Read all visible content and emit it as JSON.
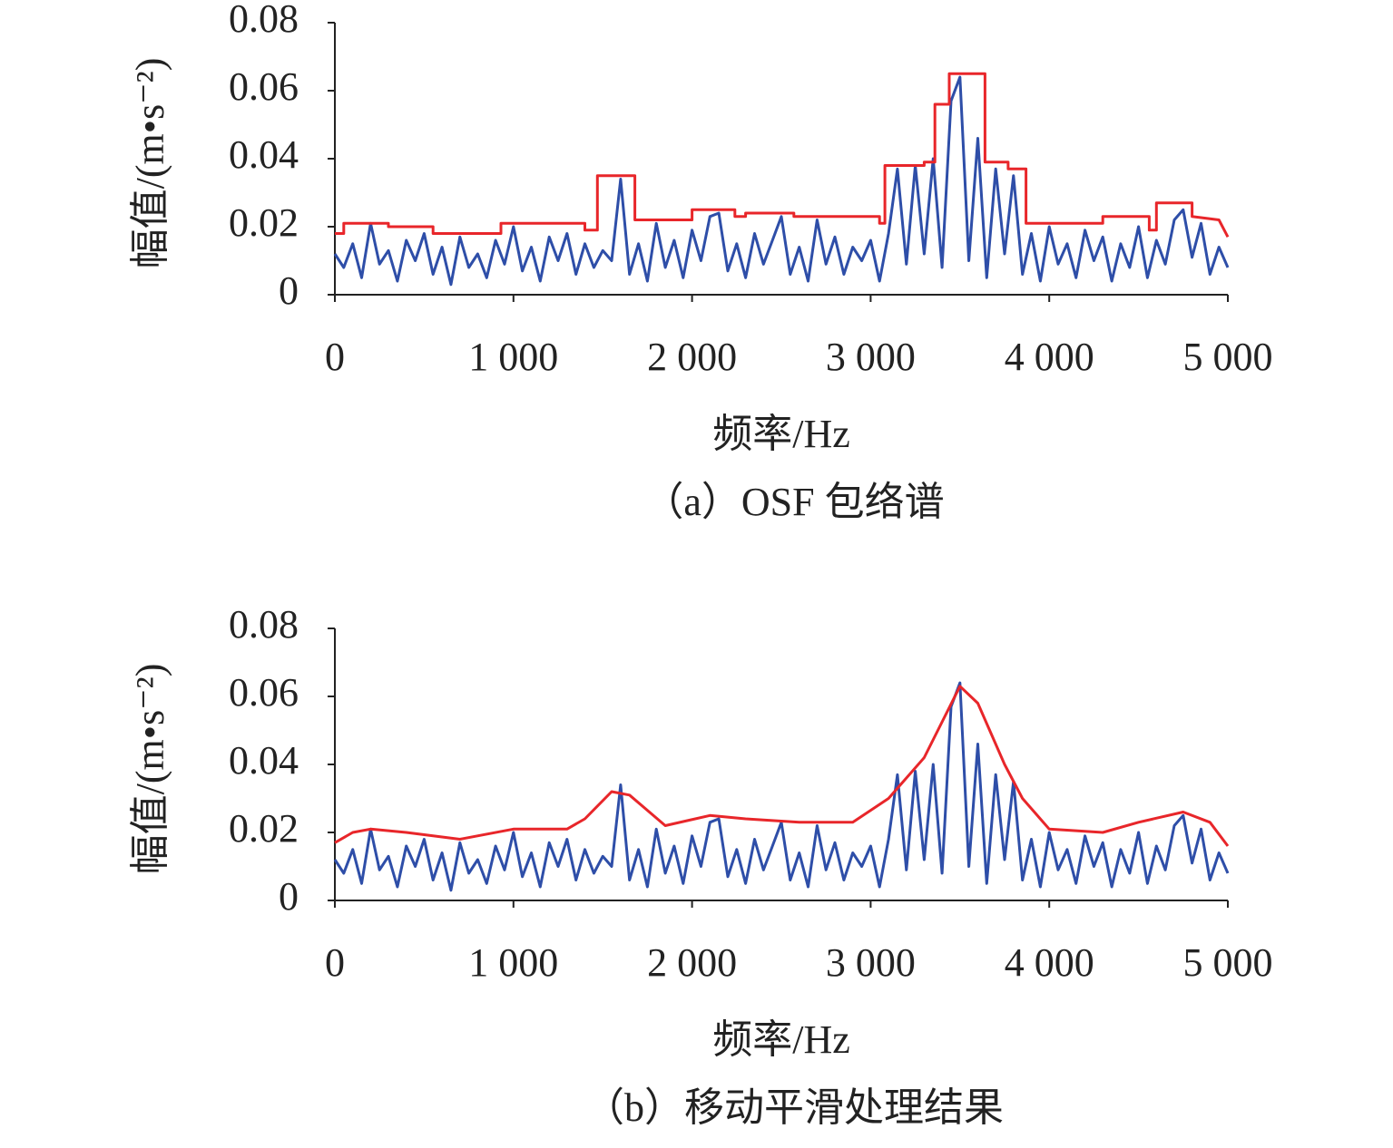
{
  "chart_data": [
    {
      "type": "line",
      "caption": "（a）OSF 包络谱",
      "x_label": "频率/Hz",
      "y_label": "幅值/(m•s⁻²)",
      "xlim": [
        0,
        5000
      ],
      "ylim": [
        0,
        0.08
      ],
      "xticks": [
        0,
        {
          "value": 1000,
          "label": "1 000"
        },
        {
          "value": 2000,
          "label": "2 000"
        },
        {
          "value": 3000,
          "label": "3 000"
        },
        {
          "value": 4000,
          "label": "4 000"
        },
        {
          "value": 5000,
          "label": "5 000"
        }
      ],
      "yticks": [
        0,
        0.02,
        0.04,
        0.06,
        0.08
      ],
      "series": [
        {
          "color": "#2e4ea8",
          "x": [
            0,
            50,
            100,
            150,
            200,
            250,
            300,
            350,
            400,
            450,
            500,
            550,
            600,
            650,
            700,
            750,
            800,
            850,
            900,
            950,
            1000,
            1050,
            1100,
            1150,
            1200,
            1250,
            1300,
            1350,
            1400,
            1450,
            1500,
            1550,
            1600,
            1650,
            1700,
            1750,
            1800,
            1850,
            1900,
            1950,
            2000,
            2050,
            2100,
            2150,
            2200,
            2250,
            2300,
            2350,
            2400,
            2450,
            2500,
            2550,
            2600,
            2650,
            2700,
            2750,
            2800,
            2850,
            2900,
            2950,
            3000,
            3050,
            3100,
            3150,
            3200,
            3250,
            3300,
            3350,
            3400,
            3450,
            3500,
            3550,
            3600,
            3650,
            3700,
            3750,
            3800,
            3850,
            3900,
            3950,
            4000,
            4050,
            4100,
            4150,
            4200,
            4250,
            4300,
            4350,
            4400,
            4450,
            4500,
            4550,
            4600,
            4650,
            4700,
            4750,
            4800,
            4850,
            4900,
            4950,
            5000
          ],
          "values": [
            0.012,
            0.008,
            0.015,
            0.005,
            0.021,
            0.009,
            0.013,
            0.004,
            0.016,
            0.01,
            0.018,
            0.006,
            0.014,
            0.003,
            0.017,
            0.008,
            0.012,
            0.005,
            0.016,
            0.009,
            0.02,
            0.007,
            0.014,
            0.004,
            0.017,
            0.01,
            0.018,
            0.006,
            0.015,
            0.008,
            0.013,
            0.01,
            0.034,
            0.006,
            0.015,
            0.004,
            0.021,
            0.008,
            0.016,
            0.005,
            0.019,
            0.01,
            0.023,
            0.024,
            0.007,
            0.015,
            0.005,
            0.018,
            0.009,
            0.016,
            0.023,
            0.006,
            0.014,
            0.004,
            0.022,
            0.009,
            0.017,
            0.006,
            0.014,
            0.01,
            0.016,
            0.004,
            0.018,
            0.037,
            0.009,
            0.038,
            0.012,
            0.04,
            0.008,
            0.057,
            0.064,
            0.01,
            0.046,
            0.005,
            0.037,
            0.012,
            0.035,
            0.006,
            0.018,
            0.004,
            0.02,
            0.009,
            0.015,
            0.005,
            0.019,
            0.01,
            0.017,
            0.004,
            0.015,
            0.008,
            0.02,
            0.005,
            0.016,
            0.009,
            0.022,
            0.025,
            0.011,
            0.021,
            0.006,
            0.014,
            0.008
          ]
        },
        {
          "color": "#e8262a",
          "x": [
            0,
            50,
            50,
            300,
            300,
            550,
            550,
            930,
            930,
            1400,
            1400,
            1470,
            1470,
            1680,
            1680,
            2000,
            2000,
            2240,
            2240,
            2300,
            2300,
            2570,
            2570,
            3050,
            3050,
            3080,
            3080,
            3300,
            3300,
            3360,
            3360,
            3440,
            3440,
            3640,
            3640,
            3770,
            3770,
            3870,
            3870,
            4300,
            4300,
            4560,
            4560,
            4600,
            4600,
            4800,
            4800,
            4950,
            5000
          ],
          "values": [
            0.018,
            0.018,
            0.021,
            0.021,
            0.02,
            0.02,
            0.018,
            0.018,
            0.021,
            0.021,
            0.019,
            0.019,
            0.035,
            0.035,
            0.022,
            0.022,
            0.025,
            0.025,
            0.023,
            0.023,
            0.024,
            0.024,
            0.023,
            0.023,
            0.021,
            0.021,
            0.038,
            0.038,
            0.039,
            0.039,
            0.056,
            0.056,
            0.065,
            0.065,
            0.039,
            0.039,
            0.037,
            0.037,
            0.021,
            0.021,
            0.023,
            0.023,
            0.019,
            0.019,
            0.027,
            0.027,
            0.023,
            0.022,
            0.017
          ]
        }
      ]
    },
    {
      "type": "line",
      "caption": "（b）移动平滑处理结果",
      "x_label": "频率/Hz",
      "y_label": "幅值/(m•s⁻²)",
      "xlim": [
        0,
        5000
      ],
      "ylim": [
        0,
        0.08
      ],
      "xticks": [
        0,
        {
          "value": 1000,
          "label": "1 000"
        },
        {
          "value": 2000,
          "label": "2 000"
        },
        {
          "value": 3000,
          "label": "3 000"
        },
        {
          "value": 4000,
          "label": "4 000"
        },
        {
          "value": 5000,
          "label": "5 000"
        }
      ],
      "yticks": [
        0,
        0.02,
        0.04,
        0.06,
        0.08
      ],
      "series": [
        {
          "color": "#2e4ea8",
          "x": [
            0,
            50,
            100,
            150,
            200,
            250,
            300,
            350,
            400,
            450,
            500,
            550,
            600,
            650,
            700,
            750,
            800,
            850,
            900,
            950,
            1000,
            1050,
            1100,
            1150,
            1200,
            1250,
            1300,
            1350,
            1400,
            1450,
            1500,
            1550,
            1600,
            1650,
            1700,
            1750,
            1800,
            1850,
            1900,
            1950,
            2000,
            2050,
            2100,
            2150,
            2200,
            2250,
            2300,
            2350,
            2400,
            2450,
            2500,
            2550,
            2600,
            2650,
            2700,
            2750,
            2800,
            2850,
            2900,
            2950,
            3000,
            3050,
            3100,
            3150,
            3200,
            3250,
            3300,
            3350,
            3400,
            3450,
            3500,
            3550,
            3600,
            3650,
            3700,
            3750,
            3800,
            3850,
            3900,
            3950,
            4000,
            4050,
            4100,
            4150,
            4200,
            4250,
            4300,
            4350,
            4400,
            4450,
            4500,
            4550,
            4600,
            4650,
            4700,
            4750,
            4800,
            4850,
            4900,
            4950,
            5000
          ],
          "values": [
            0.012,
            0.008,
            0.015,
            0.005,
            0.021,
            0.009,
            0.013,
            0.004,
            0.016,
            0.01,
            0.018,
            0.006,
            0.014,
            0.003,
            0.017,
            0.008,
            0.012,
            0.005,
            0.016,
            0.009,
            0.02,
            0.007,
            0.014,
            0.004,
            0.017,
            0.01,
            0.018,
            0.006,
            0.015,
            0.008,
            0.013,
            0.01,
            0.034,
            0.006,
            0.015,
            0.004,
            0.021,
            0.008,
            0.016,
            0.005,
            0.019,
            0.01,
            0.023,
            0.024,
            0.007,
            0.015,
            0.005,
            0.018,
            0.009,
            0.016,
            0.023,
            0.006,
            0.014,
            0.004,
            0.022,
            0.009,
            0.017,
            0.006,
            0.014,
            0.01,
            0.016,
            0.004,
            0.018,
            0.037,
            0.009,
            0.038,
            0.012,
            0.04,
            0.008,
            0.057,
            0.064,
            0.01,
            0.046,
            0.005,
            0.037,
            0.012,
            0.035,
            0.006,
            0.018,
            0.004,
            0.02,
            0.009,
            0.015,
            0.005,
            0.019,
            0.01,
            0.017,
            0.004,
            0.015,
            0.008,
            0.02,
            0.005,
            0.016,
            0.009,
            0.022,
            0.025,
            0.011,
            0.021,
            0.006,
            0.014,
            0.008
          ]
        },
        {
          "color": "#e8262a",
          "x": [
            0,
            100,
            200,
            400,
            700,
            1000,
            1300,
            1400,
            1550,
            1650,
            1850,
            2100,
            2300,
            2600,
            2900,
            3100,
            3300,
            3500,
            3600,
            3750,
            3850,
            4000,
            4300,
            4500,
            4750,
            4900,
            5000
          ],
          "values": [
            0.017,
            0.02,
            0.021,
            0.02,
            0.018,
            0.021,
            0.021,
            0.024,
            0.032,
            0.031,
            0.022,
            0.025,
            0.024,
            0.023,
            0.023,
            0.03,
            0.042,
            0.063,
            0.058,
            0.04,
            0.03,
            0.021,
            0.02,
            0.023,
            0.026,
            0.023,
            0.016
          ]
        }
      ]
    }
  ]
}
